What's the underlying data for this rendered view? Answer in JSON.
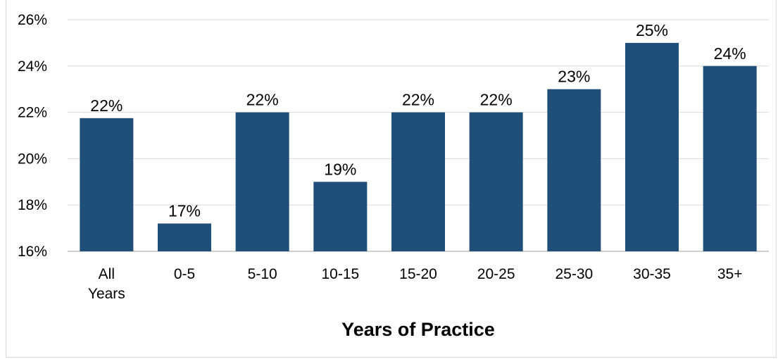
{
  "chart_data": {
    "type": "bar",
    "title": "",
    "xlabel": "Years of Practice",
    "ylabel": "",
    "categories": [
      "All Years",
      "0-5",
      "5-10",
      "10-15",
      "15-20",
      "20-25",
      "25-30",
      "30-35",
      "35+"
    ],
    "values": [
      21.75,
      17.2,
      22.0,
      19.0,
      22.0,
      22.0,
      23.0,
      25.0,
      24.0
    ],
    "data_labels": [
      "22%",
      "17%",
      "22%",
      "19%",
      "22%",
      "22%",
      "23%",
      "25%",
      "24%"
    ],
    "ylim": [
      16,
      26
    ],
    "yticks": [
      16,
      18,
      20,
      22,
      24,
      26
    ],
    "ytick_labels": [
      "16%",
      "18%",
      "20%",
      "22%",
      "24%",
      "26%"
    ],
    "grid": true,
    "legend": "none",
    "colors": {
      "bar": "#1f4e79",
      "grid": "#d9d9d9",
      "axis": "#bfbfbf"
    }
  }
}
